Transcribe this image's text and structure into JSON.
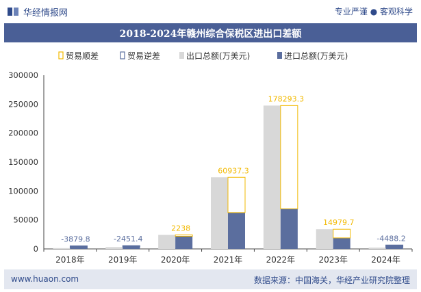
{
  "header": {
    "brand": "华经情报网",
    "slogan": "专业严谨 ● 客观科学"
  },
  "footer": {
    "site": "www.huaon.com",
    "source": "数据来源：中国海关，华经产业研究院整理"
  },
  "colors": {
    "title_bg": "#4a5f96",
    "export_bar": "#d8d8d8",
    "import_bar": "#5b6e9e",
    "surplus": "#f2b900",
    "deficit": "#5b6e9e"
  },
  "chart_data": {
    "type": "bar",
    "title": "2018-2024年赣州综合保税区进出口差额",
    "categories": [
      "2018年",
      "2019年",
      "2020年",
      "2021年",
      "2022年",
      "2023年",
      "2024年"
    ],
    "series": [
      {
        "name": "出口总额(万美元)",
        "values": [
          1400,
          3200,
          24200,
          123700,
          247600,
          34000,
          2300
        ]
      },
      {
        "name": "进口总额(万美元)",
        "values": [
          5279.8,
          5651.4,
          21962,
          62762.7,
          69306.7,
          19020.3,
          6788.2
        ]
      }
    ],
    "balance": {
      "surplus_name": "贸易顺差",
      "deficit_name": "贸易逆差",
      "values": [
        -3879.8,
        -2451.4,
        2238,
        60937.3,
        178293.3,
        14979.7,
        -4488.2
      ],
      "labels": [
        "-3879.8",
        "-2451.4",
        "2238",
        "60937.3",
        "178293.3",
        "14979.7",
        "-4488.2"
      ]
    },
    "ylim": [
      0,
      300000
    ],
    "yticks": [
      "0",
      "50000",
      "100000",
      "150000",
      "200000",
      "250000",
      "300000"
    ],
    "legend_position": "top",
    "grid": false
  }
}
